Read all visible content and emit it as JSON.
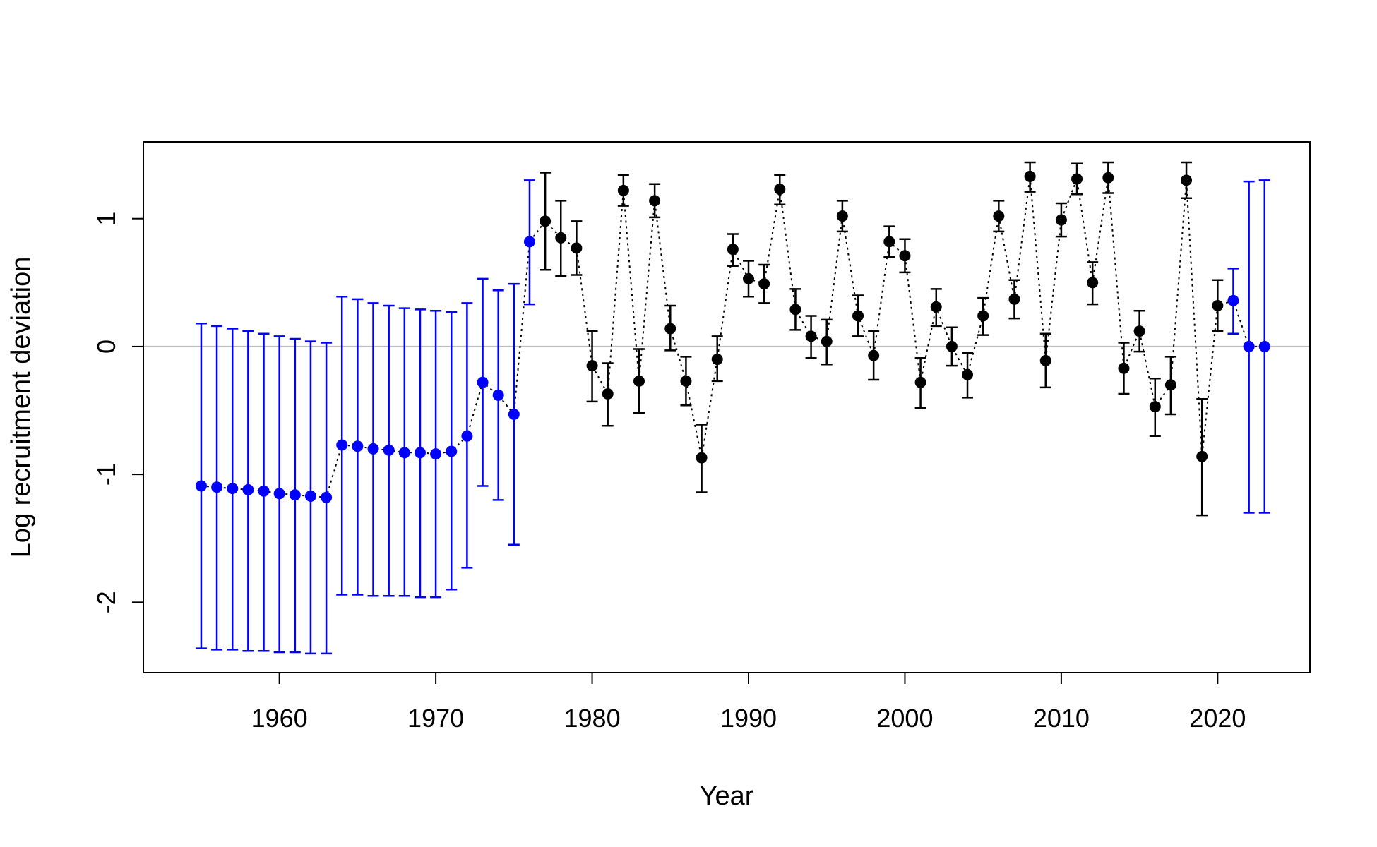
{
  "chart_data": {
    "type": "scatter",
    "title": "",
    "xlabel": "Year",
    "ylabel": "Log recruitment deviation",
    "xlim": [
      1951.3,
      2025.9
    ],
    "ylim": [
      -2.55,
      1.6
    ],
    "x_ticks": [
      1960,
      1970,
      1980,
      1990,
      2000,
      2010,
      2020
    ],
    "y_ticks": [
      -2,
      -1,
      0,
      1
    ],
    "x_tick_labels": [
      "1960",
      "1970",
      "1980",
      "1990",
      "2000",
      "2010",
      "2020"
    ],
    "y_tick_labels": [
      "-2",
      "-1",
      "0",
      "1"
    ],
    "reference_line": 0,
    "reference_line_color": "#bebebe",
    "connector_style": "dotted",
    "grid": false,
    "legend": "none",
    "colors": {
      "early": "#0000ff",
      "main": "#000000",
      "forecast": "#0000ff"
    },
    "series": [
      {
        "color_key": "early",
        "points": [
          {
            "x": 1955,
            "y": -1.09,
            "lo": -2.36,
            "hi": 0.18
          },
          {
            "x": 1956,
            "y": -1.1,
            "lo": -2.37,
            "hi": 0.16
          },
          {
            "x": 1957,
            "y": -1.11,
            "lo": -2.37,
            "hi": 0.14
          },
          {
            "x": 1958,
            "y": -1.12,
            "lo": -2.38,
            "hi": 0.12
          },
          {
            "x": 1959,
            "y": -1.13,
            "lo": -2.38,
            "hi": 0.1
          },
          {
            "x": 1960,
            "y": -1.15,
            "lo": -2.39,
            "hi": 0.08
          },
          {
            "x": 1961,
            "y": -1.16,
            "lo": -2.39,
            "hi": 0.06
          },
          {
            "x": 1962,
            "y": -1.17,
            "lo": -2.4,
            "hi": 0.04
          },
          {
            "x": 1963,
            "y": -1.18,
            "lo": -2.4,
            "hi": 0.03
          },
          {
            "x": 1964,
            "y": -0.77,
            "lo": -1.94,
            "hi": 0.39
          },
          {
            "x": 1965,
            "y": -0.78,
            "lo": -1.94,
            "hi": 0.37
          },
          {
            "x": 1966,
            "y": -0.8,
            "lo": -1.95,
            "hi": 0.34
          },
          {
            "x": 1967,
            "y": -0.81,
            "lo": -1.95,
            "hi": 0.32
          },
          {
            "x": 1968,
            "y": -0.83,
            "lo": -1.95,
            "hi": 0.3
          },
          {
            "x": 1969,
            "y": -0.83,
            "lo": -1.96,
            "hi": 0.29
          },
          {
            "x": 1970,
            "y": -0.84,
            "lo": -1.96,
            "hi": 0.28
          },
          {
            "x": 1971,
            "y": -0.82,
            "lo": -1.9,
            "hi": 0.27
          },
          {
            "x": 1972,
            "y": -0.7,
            "lo": -1.73,
            "hi": 0.34
          },
          {
            "x": 1973,
            "y": -0.28,
            "lo": -1.09,
            "hi": 0.53
          },
          {
            "x": 1974,
            "y": -0.38,
            "lo": -1.2,
            "hi": 0.44
          },
          {
            "x": 1975,
            "y": -0.53,
            "lo": -1.55,
            "hi": 0.49
          },
          {
            "x": 1976,
            "y": 0.82,
            "lo": 0.33,
            "hi": 1.3
          }
        ]
      },
      {
        "color_key": "main",
        "points": [
          {
            "x": 1977,
            "y": 0.98,
            "lo": 0.6,
            "hi": 1.36
          },
          {
            "x": 1978,
            "y": 0.85,
            "lo": 0.55,
            "hi": 1.14
          },
          {
            "x": 1979,
            "y": 0.77,
            "lo": 0.56,
            "hi": 0.98
          },
          {
            "x": 1980,
            "y": -0.15,
            "lo": -0.43,
            "hi": 0.12
          },
          {
            "x": 1981,
            "y": -0.37,
            "lo": -0.62,
            "hi": -0.13
          },
          {
            "x": 1982,
            "y": 1.22,
            "lo": 1.1,
            "hi": 1.34
          },
          {
            "x": 1983,
            "y": -0.27,
            "lo": -0.52,
            "hi": -0.02
          },
          {
            "x": 1984,
            "y": 1.14,
            "lo": 1.01,
            "hi": 1.27
          },
          {
            "x": 1985,
            "y": 0.14,
            "lo": -0.03,
            "hi": 0.32
          },
          {
            "x": 1986,
            "y": -0.27,
            "lo": -0.46,
            "hi": -0.08
          },
          {
            "x": 1987,
            "y": -0.87,
            "lo": -1.14,
            "hi": -0.61
          },
          {
            "x": 1988,
            "y": -0.1,
            "lo": -0.27,
            "hi": 0.08
          },
          {
            "x": 1989,
            "y": 0.76,
            "lo": 0.63,
            "hi": 0.88
          },
          {
            "x": 1990,
            "y": 0.53,
            "lo": 0.39,
            "hi": 0.67
          },
          {
            "x": 1991,
            "y": 0.49,
            "lo": 0.34,
            "hi": 0.64
          },
          {
            "x": 1992,
            "y": 1.23,
            "lo": 1.11,
            "hi": 1.34
          },
          {
            "x": 1993,
            "y": 0.29,
            "lo": 0.13,
            "hi": 0.45
          },
          {
            "x": 1994,
            "y": 0.08,
            "lo": -0.09,
            "hi": 0.24
          },
          {
            "x": 1995,
            "y": 0.04,
            "lo": -0.14,
            "hi": 0.21
          },
          {
            "x": 1996,
            "y": 1.02,
            "lo": 0.9,
            "hi": 1.14
          },
          {
            "x": 1997,
            "y": 0.24,
            "lo": 0.08,
            "hi": 0.4
          },
          {
            "x": 1998,
            "y": -0.07,
            "lo": -0.26,
            "hi": 0.12
          },
          {
            "x": 1999,
            "y": 0.82,
            "lo": 0.7,
            "hi": 0.94
          },
          {
            "x": 2000,
            "y": 0.71,
            "lo": 0.58,
            "hi": 0.84
          },
          {
            "x": 2001,
            "y": -0.28,
            "lo": -0.48,
            "hi": -0.09
          },
          {
            "x": 2002,
            "y": 0.31,
            "lo": 0.16,
            "hi": 0.45
          },
          {
            "x": 2003,
            "y": 0.0,
            "lo": -0.15,
            "hi": 0.15
          },
          {
            "x": 2004,
            "y": -0.22,
            "lo": -0.4,
            "hi": -0.05
          },
          {
            "x": 2005,
            "y": 0.24,
            "lo": 0.09,
            "hi": 0.38
          },
          {
            "x": 2006,
            "y": 1.02,
            "lo": 0.9,
            "hi": 1.14
          },
          {
            "x": 2007,
            "y": 0.37,
            "lo": 0.22,
            "hi": 0.52
          },
          {
            "x": 2008,
            "y": 1.33,
            "lo": 1.21,
            "hi": 1.44
          },
          {
            "x": 2009,
            "y": -0.11,
            "lo": -0.32,
            "hi": 0.1
          },
          {
            "x": 2010,
            "y": 0.99,
            "lo": 0.86,
            "hi": 1.12
          },
          {
            "x": 2011,
            "y": 1.31,
            "lo": 1.19,
            "hi": 1.43
          },
          {
            "x": 2012,
            "y": 0.5,
            "lo": 0.33,
            "hi": 0.66
          },
          {
            "x": 2013,
            "y": 1.32,
            "lo": 1.2,
            "hi": 1.44
          },
          {
            "x": 2014,
            "y": -0.17,
            "lo": -0.37,
            "hi": 0.03
          },
          {
            "x": 2015,
            "y": 0.12,
            "lo": -0.04,
            "hi": 0.28
          },
          {
            "x": 2016,
            "y": -0.47,
            "lo": -0.7,
            "hi": -0.25
          },
          {
            "x": 2017,
            "y": -0.3,
            "lo": -0.53,
            "hi": -0.08
          },
          {
            "x": 2018,
            "y": 1.3,
            "lo": 1.16,
            "hi": 1.44
          },
          {
            "x": 2019,
            "y": -0.86,
            "lo": -1.32,
            "hi": -0.41
          },
          {
            "x": 2020,
            "y": 0.32,
            "lo": 0.12,
            "hi": 0.52
          }
        ]
      },
      {
        "color_key": "forecast",
        "points": [
          {
            "x": 2021,
            "y": 0.36,
            "lo": 0.1,
            "hi": 0.61
          },
          {
            "x": 2022,
            "y": 0.0,
            "lo": -1.3,
            "hi": 1.29
          },
          {
            "x": 2023,
            "y": 0.0,
            "lo": -1.3,
            "hi": 1.3
          }
        ]
      }
    ]
  }
}
